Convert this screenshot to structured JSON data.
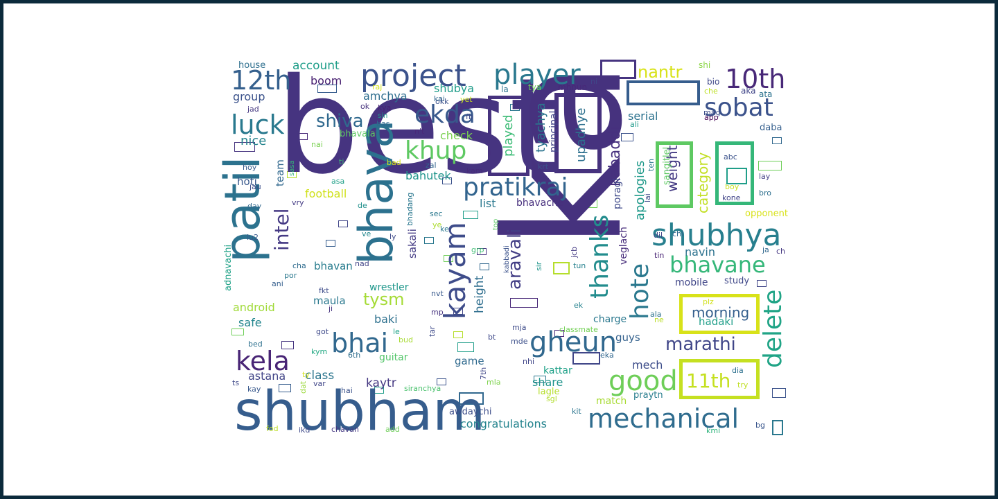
{
  "colors": {
    "page_border": "#0c2a3b",
    "canvas_background": "#ffffff"
  },
  "words": [
    {
      "text": "best",
      "color": "#463480"
    },
    {
      "text": "ka",
      "color": "#46327e"
    },
    {
      "text": "shubham",
      "color": "#365d8d"
    },
    {
      "text": "bhava",
      "color": "#2c718e"
    },
    {
      "text": "patil",
      "color": "#2c728e"
    },
    {
      "text": "project",
      "color": "#3b528b"
    },
    {
      "text": "player",
      "color": "#2a788e"
    },
    {
      "text": "pratikraj",
      "color": "#32648e"
    },
    {
      "text": "shubhya",
      "color": "#277f8e"
    },
    {
      "text": "mechanical",
      "color": "#2f6c8e"
    },
    {
      "text": "kayam",
      "color": "#3e4c8a"
    },
    {
      "text": "bhai",
      "color": "#31688e"
    },
    {
      "text": "gheun",
      "color": "#31688e"
    },
    {
      "text": "good",
      "color": "#6ece58"
    },
    {
      "text": "12th",
      "color": "#35608d"
    },
    {
      "text": "10th",
      "color": "#482878"
    },
    {
      "text": "sobat",
      "color": "#3b528b"
    },
    {
      "text": "ekda",
      "color": "#38598c"
    },
    {
      "text": "khup",
      "color": "#5ec962"
    },
    {
      "text": "luck",
      "color": "#29798e"
    },
    {
      "text": "kela",
      "color": "#482475"
    },
    {
      "text": "thanks",
      "color": "#228c8d"
    },
    {
      "text": "hote",
      "color": "#2a788e"
    },
    {
      "text": "delete",
      "color": "#20a486"
    },
    {
      "text": "bhavane",
      "color": "#35b779"
    },
    {
      "text": "marathi",
      "color": "#404688"
    },
    {
      "text": "intel",
      "color": "#443983"
    },
    {
      "text": "shiva",
      "color": "#30698e"
    },
    {
      "text": "tysm",
      "color": "#a5db36"
    },
    {
      "text": "aravali",
      "color": "#433e85"
    },
    {
      "text": "nantr",
      "color": "#d8e219"
    },
    {
      "text": "11th",
      "color": "#c5e021"
    },
    {
      "text": "kabaddi",
      "color": "#46307e"
    },
    {
      "text": "upadhye",
      "color": "#2d708e"
    },
    {
      "text": "played",
      "color": "#3bbb75"
    },
    {
      "text": "principal",
      "color": "#404387"
    },
    {
      "text": "tyachya",
      "color": "#2b748e"
    },
    {
      "text": "weight",
      "color": "#443a83"
    },
    {
      "text": "category",
      "color": "#c2df23"
    },
    {
      "text": "sangitlel",
      "color": "#5ec962"
    },
    {
      "text": "apologies",
      "color": "#1f998a"
    },
    {
      "text": "poragi",
      "color": "#3e4989"
    },
    {
      "text": "morning",
      "color": "#355f8d"
    },
    {
      "text": "hadaki",
      "color": "#1f9e89"
    },
    {
      "text": "height",
      "color": "#2e6e8e"
    },
    {
      "text": "veglach",
      "color": "#472d7b"
    },
    {
      "text": "account",
      "color": "#1f9e89"
    },
    {
      "text": "boom",
      "color": "#482071"
    },
    {
      "text": "amchya",
      "color": "#2e6e8e"
    },
    {
      "text": "shubya",
      "color": "#1e9c89"
    },
    {
      "text": "group",
      "color": "#3b528b"
    },
    {
      "text": "nice",
      "color": "#25848e"
    },
    {
      "text": "team",
      "color": "#31688e"
    },
    {
      "text": "check",
      "color": "#7ad151"
    },
    {
      "text": "bhavala",
      "color": "#5ec962"
    },
    {
      "text": "bahutek",
      "color": "#1f958b"
    },
    {
      "text": "football",
      "color": "#d0e11c"
    },
    {
      "text": "list",
      "color": "#2a788e"
    },
    {
      "text": "bhavache",
      "color": "#472f7d"
    },
    {
      "text": "serial",
      "color": "#2c728e"
    },
    {
      "text": "hoti",
      "color": "#38588c"
    },
    {
      "text": "android",
      "color": "#a0da39"
    },
    {
      "text": "safe",
      "color": "#24868e"
    },
    {
      "text": "wrestler",
      "color": "#1f978b"
    },
    {
      "text": "maula",
      "color": "#2a788e"
    },
    {
      "text": "baki",
      "color": "#2d708e"
    },
    {
      "text": "bhavan",
      "color": "#287c8e"
    },
    {
      "text": "sakali",
      "color": "#443b84"
    },
    {
      "text": "bhadang",
      "color": "#2a778e"
    },
    {
      "text": "astana",
      "color": "#414487"
    },
    {
      "text": "class",
      "color": "#2b758e"
    },
    {
      "text": "kaytr",
      "color": "#453882"
    },
    {
      "text": "guitar",
      "color": "#52c569"
    },
    {
      "text": "game",
      "color": "#306a8e"
    },
    {
      "text": "share",
      "color": "#1f948c"
    },
    {
      "text": "kattar",
      "color": "#1fa188"
    },
    {
      "text": "mech",
      "color": "#3d4d8a"
    },
    {
      "text": "guys",
      "color": "#34618d"
    },
    {
      "text": "charge",
      "color": "#2a788e"
    },
    {
      "text": "navin",
      "color": "#2c728e"
    },
    {
      "text": "mobile",
      "color": "#404688"
    },
    {
      "text": "study",
      "color": "#3f4788"
    },
    {
      "text": "opponent",
      "color": "#d8e219"
    },
    {
      "text": "congratulations",
      "color": "#25848e"
    },
    {
      "text": "awdaychi",
      "color": "#3d4e8a"
    },
    {
      "text": "match",
      "color": "#a8db34"
    },
    {
      "text": "praytn",
      "color": "#287d8e"
    },
    {
      "text": "lagle",
      "color": "#b5de2b"
    },
    {
      "text": "daba",
      "color": "#355f8d"
    },
    {
      "text": "adnavachi",
      "color": "#1fa187"
    },
    {
      "text": "house",
      "color": "#2e6f8e"
    },
    {
      "text": "shi",
      "color": "#8bd646"
    },
    {
      "text": "bio",
      "color": "#3f4889"
    },
    {
      "text": "aka",
      "color": "#404588"
    },
    {
      "text": "ata",
      "color": "#2c728e"
    },
    {
      "text": "che",
      "color": "#bddf26"
    },
    {
      "text": "mag",
      "color": "#3d4d8a"
    },
    {
      "text": "app",
      "color": "#440154"
    },
    {
      "text": "ni",
      "color": "#404688"
    },
    {
      "text": "mhnun",
      "color": "#482878"
    },
    {
      "text": "tya",
      "color": "#6ccd5a"
    },
    {
      "text": "la",
      "color": "#2c728e"
    },
    {
      "text": "raj",
      "color": "#d2e21b"
    },
    {
      "text": "kai",
      "color": "#31688e"
    },
    {
      "text": "ok",
      "color": "#46327e"
    },
    {
      "text": "kya",
      "color": "#482173"
    },
    {
      "text": "okk",
      "color": "#3b528b"
    },
    {
      "text": "yet",
      "color": "#c8e020"
    },
    {
      "text": "fb",
      "color": "#3e4989"
    },
    {
      "text": "sin",
      "color": "#1f9a8a"
    },
    {
      "text": "bas",
      "color": "#31688e"
    },
    {
      "text": "n't",
      "color": "#482979"
    },
    {
      "text": "jad",
      "color": "#453781"
    },
    {
      "text": "nai",
      "color": "#7ad151"
    },
    {
      "text": "hoy",
      "color": "#365c8d"
    },
    {
      "text": "sasa",
      "color": "#35b779"
    },
    {
      "text": "ti",
      "color": "#3dbc74"
    },
    {
      "text": "bad",
      "color": "#d5e21a"
    },
    {
      "text": "zal",
      "color": "#32658e"
    },
    {
      "text": "kam",
      "color": "#472c7a"
    },
    {
      "text": "krt",
      "color": "#3b518b"
    },
    {
      "text": "jau",
      "color": "#3d4d8a"
    },
    {
      "text": "asa",
      "color": "#1fa088"
    },
    {
      "text": "day",
      "color": "#31688e"
    },
    {
      "text": "vry",
      "color": "#443b84"
    },
    {
      "text": "de",
      "color": "#21918c"
    },
    {
      "text": "sec",
      "color": "#2a788e"
    },
    {
      "text": "ye",
      "color": "#addc30"
    },
    {
      "text": "top",
      "color": "#5ac864"
    },
    {
      "text": "ke",
      "color": "#2a778e"
    },
    {
      "text": "lu2",
      "color": "#38598c"
    },
    {
      "text": "ly",
      "color": "#3e4a89"
    },
    {
      "text": "ve",
      "color": "#23888e"
    },
    {
      "text": "nad",
      "color": "#414487"
    },
    {
      "text": "cha",
      "color": "#2f6c8e"
    },
    {
      "text": "por",
      "color": "#2a788e"
    },
    {
      "text": "ani",
      "color": "#355f8d"
    },
    {
      "text": "fkt",
      "color": "#3e4c8a"
    },
    {
      "text": "nvt",
      "color": "#38598c"
    },
    {
      "text": "ji",
      "color": "#46327e"
    },
    {
      "text": "mp",
      "color": "#46337f"
    },
    {
      "text": "grp",
      "color": "#3fbc73"
    },
    {
      "text": "kabbadi",
      "color": "#3b528b"
    },
    {
      "text": "sir",
      "color": "#1f958b"
    },
    {
      "text": "jcb",
      "color": "#443a83"
    },
    {
      "text": "tun",
      "color": "#26818e"
    },
    {
      "text": "ek",
      "color": "#26828e"
    },
    {
      "text": "ala",
      "color": "#2d708e"
    },
    {
      "text": "ne",
      "color": "#bade28"
    },
    {
      "text": "tin",
      "color": "#482374"
    },
    {
      "text": "lai",
      "color": "#3e4989"
    },
    {
      "text": "dil",
      "color": "#404688"
    },
    {
      "text": "chi",
      "color": "#30698e"
    },
    {
      "text": "ten",
      "color": "#2a788e"
    },
    {
      "text": "ali",
      "color": "#1f9a8a"
    },
    {
      "text": "abc",
      "color": "#3b528b"
    },
    {
      "text": "boy",
      "color": "#cae11f"
    },
    {
      "text": "kone",
      "color": "#414487"
    },
    {
      "text": "lay",
      "color": "#424086"
    },
    {
      "text": "bro",
      "color": "#2e6f8e"
    },
    {
      "text": "ja",
      "color": "#31688e"
    },
    {
      "text": "ch",
      "color": "#453882"
    },
    {
      "text": "plz",
      "color": "#d2e21b"
    },
    {
      "text": "mja",
      "color": "#3e4a89"
    },
    {
      "text": "classmate",
      "color": "#73d056"
    },
    {
      "text": "mde",
      "color": "#3c4f8a"
    },
    {
      "text": "bt",
      "color": "#3e4989"
    },
    {
      "text": "nhi",
      "color": "#404588"
    },
    {
      "text": "eka",
      "color": "#31678e"
    },
    {
      "text": "mla",
      "color": "#7fd34e"
    },
    {
      "text": "sgl",
      "color": "#b2dd2d"
    },
    {
      "text": "kit",
      "color": "#2b758e"
    },
    {
      "text": "dia",
      "color": "#2d708e"
    },
    {
      "text": "try",
      "color": "#c0df25"
    },
    {
      "text": "bg",
      "color": "#39568c"
    },
    {
      "text": "kmi",
      "color": "#2fb47c"
    },
    {
      "text": "got",
      "color": "#3e4989"
    },
    {
      "text": "le",
      "color": "#1fa287"
    },
    {
      "text": "bud",
      "color": "#a8db34"
    },
    {
      "text": "tar",
      "color": "#3e4a89"
    },
    {
      "text": "bed",
      "color": "#2d708e"
    },
    {
      "text": "kym",
      "color": "#23a983"
    },
    {
      "text": "6th",
      "color": "#2e6e8e"
    },
    {
      "text": "ts",
      "color": "#3e4989"
    },
    {
      "text": "kay",
      "color": "#38588c"
    },
    {
      "text": "dat",
      "color": "#9bd93c"
    },
    {
      "text": "var",
      "color": "#404688"
    },
    {
      "text": "hai",
      "color": "#3b528b"
    },
    {
      "text": "siranchya",
      "color": "#4ac16d"
    },
    {
      "text": "7th",
      "color": "#404688"
    },
    {
      "text": "ty",
      "color": "#d2e21b"
    },
    {
      "text": "fod",
      "color": "#bddf26"
    },
    {
      "text": "ikd",
      "color": "#3e4989"
    },
    {
      "text": "chavan",
      "color": "#453882"
    },
    {
      "text": "add",
      "color": "#6ece58"
    }
  ],
  "frames": [
    {
      "color": "#46327e"
    },
    {
      "color": "#46327e"
    },
    {
      "color": "#5ec962"
    },
    {
      "color": "#35b779"
    },
    {
      "color": "#d8e219"
    },
    {
      "color": "#c5e021"
    }
  ],
  "glyph_boxes": {
    "color_pool": [
      "#463480",
      "#365d8d",
      "#1f9e89",
      "#6ece58",
      "#3b528b",
      "#2a788e",
      "#482878",
      "#b5de2b",
      "#404688",
      "#31688e"
    ]
  }
}
